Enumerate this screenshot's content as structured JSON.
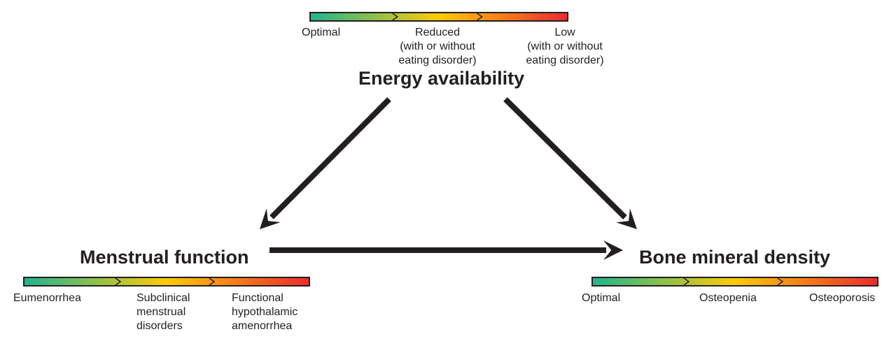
{
  "nodes": {
    "energy": {
      "title": "Energy availability",
      "scale": [
        "Optimal",
        "Reduced\n(with or without\neating disorder)",
        "Low\n(with or without\neating disorder)"
      ]
    },
    "menstrual": {
      "title": "Menstrual function",
      "scale": [
        "Eumenorrhea",
        "Subclinical\nmenstrual\ndisorders",
        "Functional\nhypothalamic\namenorrhea"
      ]
    },
    "bone": {
      "title": "Bone mineral density",
      "scale": [
        "Optimal",
        "Osteopenia",
        "Osteoporosis"
      ]
    }
  },
  "colors": {
    "gradient_start": "#1fb58f",
    "gradient_mid": "#ffcb05",
    "gradient_end": "#ee2b2e",
    "arrow": "#231f20"
  },
  "icons": {
    "gradient-bar-chevron": "chevron-right",
    "arrow": "filled-arrowhead"
  }
}
